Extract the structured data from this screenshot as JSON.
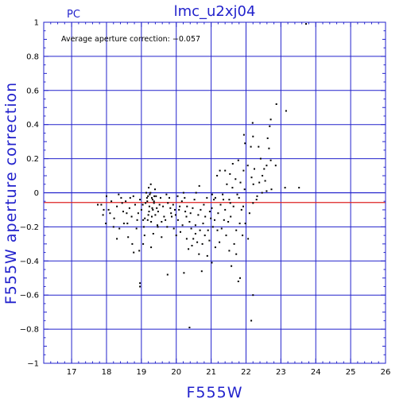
{
  "chart_data": {
    "type": "scatter",
    "title": "lmc_u2xj04",
    "chip_label": "PC",
    "xlabel": "F555W",
    "ylabel": "F555W aperture correction",
    "annotation": "Average aperture correction: −0.057",
    "xlim": [
      16.2,
      26
    ],
    "ylim": [
      -1,
      1
    ],
    "x_ticks": [
      17,
      18,
      19,
      20,
      21,
      22,
      23,
      24,
      25,
      26
    ],
    "y_ticks": [
      1,
      0.8,
      0.6,
      0.4,
      0.2,
      0,
      -0.2,
      -0.4,
      -0.6,
      -0.8,
      -1
    ],
    "y_tick_labels": [
      "1",
      "0.8",
      "0.6",
      "0.4",
      "0.2",
      "0",
      "−0.2",
      "−0.4",
      "−0.6",
      "−0.8",
      "−1"
    ],
    "grid": true,
    "average_line": -0.057,
    "zero_line": 0,
    "colors": {
      "frame": "#2222cc",
      "grid": "#2222cc",
      "average_line": "#dd2222",
      "points": "#000000",
      "text": "#2222cc"
    },
    "points": [
      [
        23.72,
        0.99
      ],
      [
        23.15,
        0.48
      ],
      [
        22.87,
        0.52
      ],
      [
        22.68,
        0.39
      ],
      [
        22.71,
        0.43
      ],
      [
        22.62,
        0.32
      ],
      [
        22.66,
        0.26
      ],
      [
        22.71,
        0.19
      ],
      [
        22.19,
        0.41
      ],
      [
        22.2,
        0.33
      ],
      [
        22.14,
        0.27
      ],
      [
        22.05,
        0.16
      ],
      [
        21.97,
        0.29
      ],
      [
        21.94,
        0.34
      ],
      [
        22.36,
        0.27
      ],
      [
        22.42,
        0.2
      ],
      [
        22.52,
        0.14
      ],
      [
        22.47,
        0.1
      ],
      [
        22.59,
        0.16
      ],
      [
        22.85,
        0.16
      ],
      [
        23.52,
        0.03
      ],
      [
        23.12,
        0.03
      ],
      [
        22.73,
        0.02
      ],
      [
        22.59,
        0.01
      ],
      [
        22.46,
        0.0
      ],
      [
        22.32,
        -0.02
      ],
      [
        22.2,
        -0.06
      ],
      [
        22.21,
        0.05
      ],
      [
        22.24,
        0.14
      ],
      [
        22.16,
        0.09
      ],
      [
        21.96,
        0.02
      ],
      [
        21.84,
        0.06
      ],
      [
        21.93,
        0.13
      ],
      [
        21.8,
        -0.03
      ],
      [
        21.87,
        -0.1
      ],
      [
        21.61,
        0.03
      ],
      [
        21.54,
        0.11
      ],
      [
        21.7,
        0.08
      ],
      [
        21.78,
        0.19
      ],
      [
        21.62,
        0.17
      ],
      [
        21.25,
        0.13
      ],
      [
        21.17,
        0.1
      ],
      [
        21.4,
        0.13
      ],
      [
        21.45,
        0.05
      ],
      [
        21.4,
        -0.1
      ],
      [
        21.52,
        -0.04
      ],
      [
        21.35,
        -0.04
      ],
      [
        21.27,
        -0.07
      ],
      [
        21.2,
        -0.12
      ],
      [
        21.12,
        -0.03
      ],
      [
        21.02,
        -0.09
      ],
      [
        21.03,
        -0.01
      ],
      [
        20.99,
        -0.15
      ],
      [
        20.91,
        -0.22
      ],
      [
        20.88,
        -0.03
      ],
      [
        20.83,
        -0.14
      ],
      [
        20.77,
        -0.18
      ],
      [
        20.7,
        -0.1
      ],
      [
        20.63,
        -0.13
      ],
      [
        20.57,
        0.0
      ],
      [
        20.66,
        0.04
      ],
      [
        20.55,
        -0.24
      ],
      [
        20.49,
        -0.27
      ],
      [
        20.43,
        -0.21
      ],
      [
        20.38,
        -0.17
      ],
      [
        20.31,
        -0.08
      ],
      [
        20.26,
        -0.11
      ],
      [
        20.21,
        0.0
      ],
      [
        20.16,
        -0.05
      ],
      [
        20.1,
        -0.08
      ],
      [
        20.04,
        -0.02
      ],
      [
        19.96,
        -0.1
      ],
      [
        19.93,
        -0.21
      ],
      [
        20.0,
        -0.25
      ],
      [
        19.85,
        -0.12
      ],
      [
        19.76,
        -0.06
      ],
      [
        19.72,
        -0.01
      ],
      [
        19.65,
        -0.14
      ],
      [
        19.58,
        -0.17
      ],
      [
        19.52,
        -0.07
      ],
      [
        19.47,
        -0.2
      ],
      [
        19.42,
        -0.02
      ],
      [
        19.39,
        0.02
      ],
      [
        19.36,
        -0.05
      ],
      [
        19.33,
        -0.1
      ],
      [
        19.3,
        -0.03
      ],
      [
        19.26,
        0.0
      ],
      [
        19.23,
        -0.08
      ],
      [
        19.2,
        -0.13
      ],
      [
        19.17,
        -0.05
      ],
      [
        19.14,
        0.0
      ],
      [
        19.1,
        -0.15
      ],
      [
        19.07,
        -0.2
      ],
      [
        19.04,
        -0.07
      ],
      [
        19.0,
        -0.1
      ],
      [
        18.96,
        -0.04
      ],
      [
        18.91,
        -0.12
      ],
      [
        18.86,
        -0.21
      ],
      [
        18.82,
        -0.07
      ],
      [
        18.77,
        -0.02
      ],
      [
        18.72,
        -0.14
      ],
      [
        18.66,
        -0.09
      ],
      [
        18.6,
        -0.18
      ],
      [
        18.55,
        -0.05
      ],
      [
        18.48,
        -0.11
      ],
      [
        18.42,
        -0.03
      ],
      [
        18.37,
        -0.21
      ],
      [
        18.3,
        -0.08
      ],
      [
        18.22,
        -0.15
      ],
      [
        18.14,
        -0.05
      ],
      [
        18.06,
        -0.1
      ],
      [
        17.98,
        -0.18
      ],
      [
        17.9,
        -0.13
      ],
      [
        17.85,
        -0.07
      ],
      [
        18.62,
        -0.26
      ],
      [
        18.74,
        -0.3
      ],
      [
        18.94,
        -0.34
      ],
      [
        19.28,
        -0.17
      ],
      [
        19.34,
        -0.24
      ],
      [
        19.4,
        -0.13
      ],
      [
        19.31,
        -0.09
      ],
      [
        19.19,
        -0.02
      ],
      [
        19.27,
        0.05
      ],
      [
        19.36,
        -0.06
      ],
      [
        19.22,
        -0.11
      ],
      [
        19.16,
        -0.03
      ],
      [
        19.44,
        -0.09
      ],
      [
        19.24,
        -0.01
      ],
      [
        19.3,
        -0.14
      ],
      [
        19.12,
        -0.06
      ],
      [
        19.37,
        -0.02
      ],
      [
        19.18,
        -0.16
      ],
      [
        19.21,
        0.03
      ],
      [
        19.32,
        -0.04
      ],
      [
        19.05,
        -0.16
      ],
      [
        19.48,
        -0.11
      ],
      [
        19.55,
        -0.03
      ],
      [
        19.62,
        -0.08
      ],
      [
        19.69,
        -0.16
      ],
      [
        19.8,
        -0.03
      ],
      [
        19.87,
        -0.14
      ],
      [
        19.91,
        -0.07
      ],
      [
        20.05,
        -0.16
      ],
      [
        20.12,
        -0.23
      ],
      [
        20.18,
        -0.19
      ],
      [
        20.24,
        -0.03
      ],
      [
        20.3,
        -0.27
      ],
      [
        20.35,
        -0.33
      ],
      [
        20.41,
        -0.12
      ],
      [
        20.47,
        -0.09
      ],
      [
        20.52,
        -0.04
      ],
      [
        20.6,
        -0.29
      ],
      [
        20.68,
        -0.22
      ],
      [
        20.75,
        -0.3
      ],
      [
        20.82,
        -0.25
      ],
      [
        20.89,
        -0.37
      ],
      [
        20.95,
        -0.28
      ],
      [
        21.05,
        -0.2
      ],
      [
        21.1,
        -0.16
      ],
      [
        21.18,
        -0.22
      ],
      [
        21.24,
        -0.29
      ],
      [
        21.3,
        -0.21
      ],
      [
        21.37,
        -0.16
      ],
      [
        21.43,
        -0.25
      ],
      [
        21.49,
        -0.17
      ],
      [
        21.56,
        -0.14
      ],
      [
        21.64,
        -0.08
      ],
      [
        21.72,
        -0.22
      ],
      [
        21.82,
        -0.18
      ],
      [
        21.9,
        -0.25
      ],
      [
        21.72,
        -0.36
      ],
      [
        21.66,
        -0.3
      ],
      [
        21.58,
        -0.43
      ],
      [
        21.83,
        -0.5
      ],
      [
        21.78,
        -0.52
      ],
      [
        22.2,
        -0.6
      ],
      [
        22.15,
        -0.75
      ],
      [
        22.06,
        -0.27
      ],
      [
        21.98,
        -0.18
      ],
      [
        22.1,
        -0.12
      ],
      [
        20.38,
        -0.79
      ],
      [
        20.22,
        -0.47
      ],
      [
        19.75,
        -0.48
      ],
      [
        18.96,
        -0.53
      ],
      [
        18.96,
        -0.55
      ],
      [
        19.05,
        -0.3
      ],
      [
        18.78,
        -0.35
      ],
      [
        19.28,
        -0.32
      ],
      [
        20.65,
        -0.36
      ],
      [
        20.73,
        -0.46
      ],
      [
        21.02,
        -0.41
      ],
      [
        21.12,
        -0.32
      ],
      [
        21.52,
        -0.34
      ],
      [
        20.45,
        -0.31
      ],
      [
        19.98,
        -0.13
      ],
      [
        18.5,
        -0.18
      ],
      [
        18.3,
        -0.27
      ],
      [
        18.45,
        -0.06
      ],
      [
        18.2,
        -0.2
      ],
      [
        18.1,
        -0.12
      ],
      [
        17.75,
        -0.07
      ],
      [
        17.92,
        -0.1
      ],
      [
        18.0,
        -0.02
      ],
      [
        18.35,
        -0.01
      ],
      [
        18.58,
        -0.12
      ],
      [
        18.68,
        -0.03
      ],
      [
        18.88,
        -0.16
      ],
      [
        19.09,
        -0.25
      ],
      [
        19.46,
        -0.19
      ],
      [
        19.58,
        -0.26
      ],
      [
        19.74,
        -0.2
      ],
      [
        19.83,
        -0.09
      ],
      [
        20.08,
        -0.1
      ],
      [
        20.29,
        -0.14
      ],
      [
        20.55,
        -0.19
      ],
      [
        20.79,
        -0.07
      ],
      [
        20.96,
        -0.11
      ],
      [
        21.08,
        -0.04
      ],
      [
        21.33,
        -0.01
      ],
      [
        21.55,
        -0.06
      ],
      [
        21.75,
        -0.01
      ],
      [
        21.92,
        -0.08
      ],
      [
        22.3,
        -0.04
      ],
      [
        22.38,
        0.06
      ],
      [
        22.55,
        0.07
      ]
    ]
  }
}
